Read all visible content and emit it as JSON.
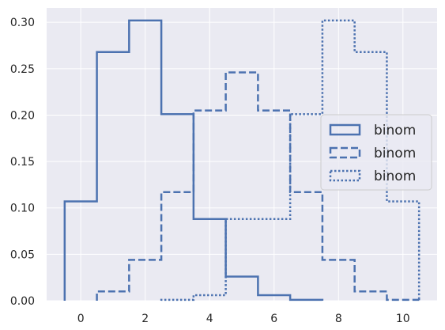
{
  "chart_data": {
    "type": "histogram-step",
    "title": "",
    "xlabel": "",
    "ylabel": "",
    "xlim": [
      -1.06,
      11.06
    ],
    "ylim": [
      0,
      0.3155
    ],
    "xticks": [
      0,
      2,
      4,
      6,
      8,
      10
    ],
    "yticks": [
      0.0,
      0.05,
      0.1,
      0.15,
      0.2,
      0.25,
      0.3
    ],
    "xtick_labels": [
      "0",
      "2",
      "4",
      "6",
      "8",
      "10"
    ],
    "ytick_labels": [
      "0.00",
      "0.05",
      "0.10",
      "0.15",
      "0.20",
      "0.25",
      "0.30"
    ],
    "grid": true,
    "legend_position": "center-right",
    "style": {
      "background": "#eaeaf2",
      "grid_color": "#ffffff",
      "line_color": "#4c72b0"
    },
    "series": [
      {
        "name": "binom",
        "line_style": "solid",
        "bin_edges": [
          -0.5,
          0.5,
          1.5,
          2.5,
          3.5,
          4.5,
          5.5,
          6.5,
          7.5
        ],
        "values": [
          0.107,
          0.268,
          0.302,
          0.201,
          0.088,
          0.026,
          0.006,
          0.001
        ]
      },
      {
        "name": "binom",
        "line_style": "dashed",
        "bin_edges": [
          0.5,
          1.5,
          2.5,
          3.5,
          4.5,
          5.5,
          6.5,
          7.5,
          8.5,
          9.5,
          10.5
        ],
        "values": [
          0.01,
          0.044,
          0.117,
          0.205,
          0.246,
          0.205,
          0.117,
          0.044,
          0.01,
          0.001
        ]
      },
      {
        "name": "binom",
        "line_style": "dotted",
        "bin_edges": [
          2.5,
          3.5,
          4.5,
          5.5,
          6.5,
          7.5,
          8.5,
          9.5,
          10.5
        ],
        "values": [
          0.001,
          0.006,
          0.088,
          0.088,
          0.201,
          0.302,
          0.268,
          0.107
        ]
      }
    ]
  }
}
